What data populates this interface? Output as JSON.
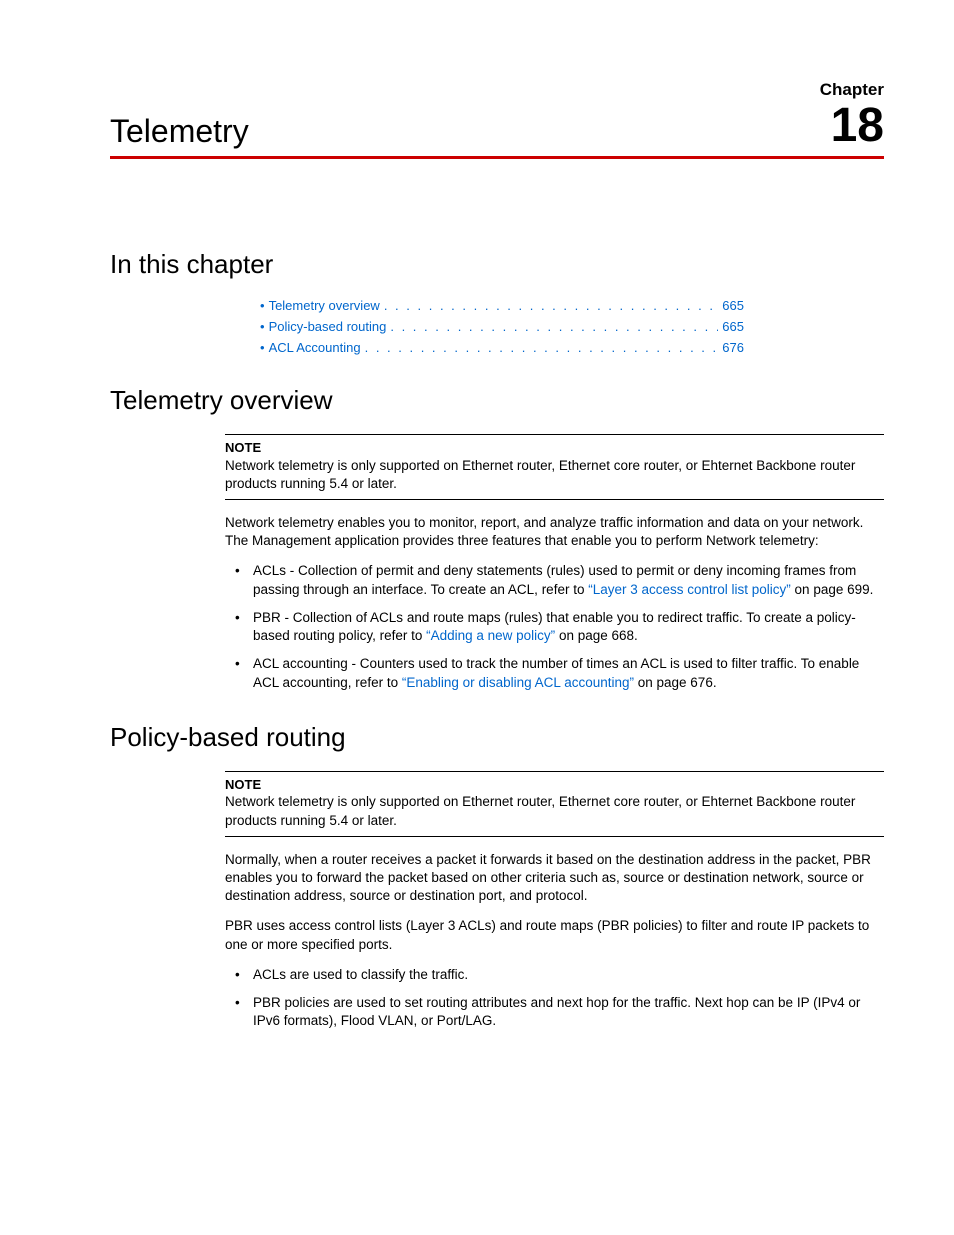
{
  "colors": {
    "accent_rule": "#cc0000",
    "link": "#0066cc",
    "text": "#000000",
    "background": "#ffffff"
  },
  "header": {
    "chapter_label": "Chapter",
    "chapter_number": "18",
    "title": "Telemetry"
  },
  "sections": {
    "in_this_chapter": {
      "heading": "In this chapter",
      "toc": [
        {
          "label": "Telemetry overview",
          "page": "665"
        },
        {
          "label": "Policy-based routing",
          "page": "665"
        },
        {
          "label": "ACL Accounting",
          "page": "676"
        }
      ]
    },
    "telemetry_overview": {
      "heading": "Telemetry overview",
      "note_label": "NOTE",
      "note_text": "Network telemetry is only supported on Ethernet router, Ethernet core router, or Ehternet Backbone router products running 5.4 or later.",
      "intro": "Network telemetry enables you to monitor, report, and analyze traffic information and data on your network. The Management application provides three features that enable you to perform Network telemetry:",
      "bullets": [
        {
          "pre": "ACLs - Collection of permit and deny statements (rules) used to permit or deny incoming frames from passing through an interface. To create an ACL, refer to ",
          "link": "“Layer 3 access control list policy”",
          "post": " on page 699."
        },
        {
          "pre": "PBR - Collection of ACLs and route maps (rules) that enable you to redirect traffic. To create a policy-based routing policy, refer to ",
          "link": "“Adding a new policy”",
          "post": " on page 668."
        },
        {
          "pre": "ACL accounting - Counters used to track the number of times an ACL is used to filter traffic. To enable ACL accounting, refer to ",
          "link": "“Enabling or disabling ACL accounting”",
          "post": " on page 676."
        }
      ]
    },
    "pbr": {
      "heading": "Policy-based routing",
      "note_label": "NOTE",
      "note_text": "Network telemetry is only supported on Ethernet router, Ethernet core router, or Ehternet Backbone router products running 5.4 or later.",
      "para1": "Normally, when a router receives a packet it forwards it based on the destination address in the packet, PBR enables you to forward the packet based on other criteria such as, source or destination network, source or destination address, source or destination port, and protocol.",
      "para2": "PBR uses access control lists (Layer 3 ACLs) and route maps (PBR policies) to filter and route IP packets to one or more specified ports.",
      "bullets": [
        "ACLs are used to classify the traffic.",
        "PBR policies are used to set routing attributes and next hop for the traffic. Next hop can be IP (IPv4 or IPv6 formats), Flood VLAN, or Port/LAG."
      ]
    }
  }
}
